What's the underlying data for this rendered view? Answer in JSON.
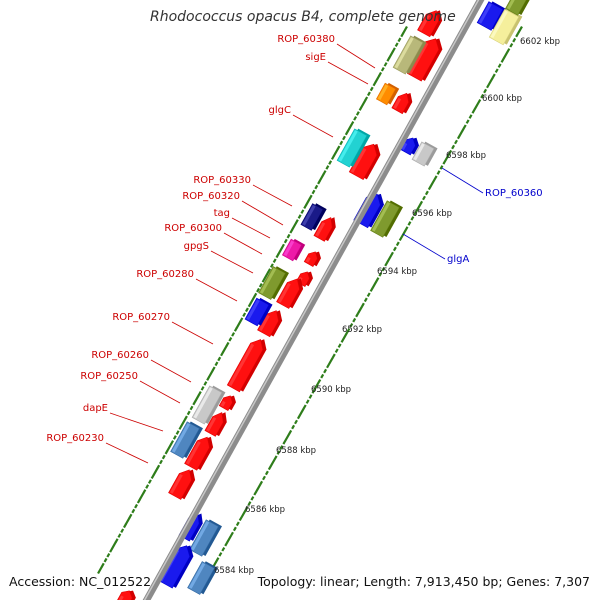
{
  "title": "Rhodococcus opacus B4, complete genome",
  "footer": {
    "accession": "Accession: NC_012522",
    "summary": "Topology: linear; Length: 7,913,450 bp; Genes: 7,307"
  },
  "colors": {
    "backbone": "#8c8c8c",
    "tick": "#2e7d1a",
    "label_top": "#cc0000",
    "label_bottom": "#0000cc",
    "text": "#222222"
  },
  "scale_labels": [
    "6584 kbp",
    "6586 kbp",
    "6588 kbp",
    "6590 kbp",
    "6592 kbp",
    "6594 kbp",
    "6596 kbp",
    "6598 kbp",
    "6600 kbp",
    "6602 kbp"
  ],
  "top_strand_labels": [
    "ROP_60380",
    "sigE",
    "glgC",
    "ROP_60330",
    "ROP_60320",
    "tag",
    "ROP_60300",
    "gpgS",
    "ROP_60280",
    "ROP_60270",
    "ROP_60260",
    "ROP_60250",
    "dapE",
    "ROP_60230"
  ],
  "bottom_strand_labels": [
    "ROP_60360",
    "glgA"
  ]
}
